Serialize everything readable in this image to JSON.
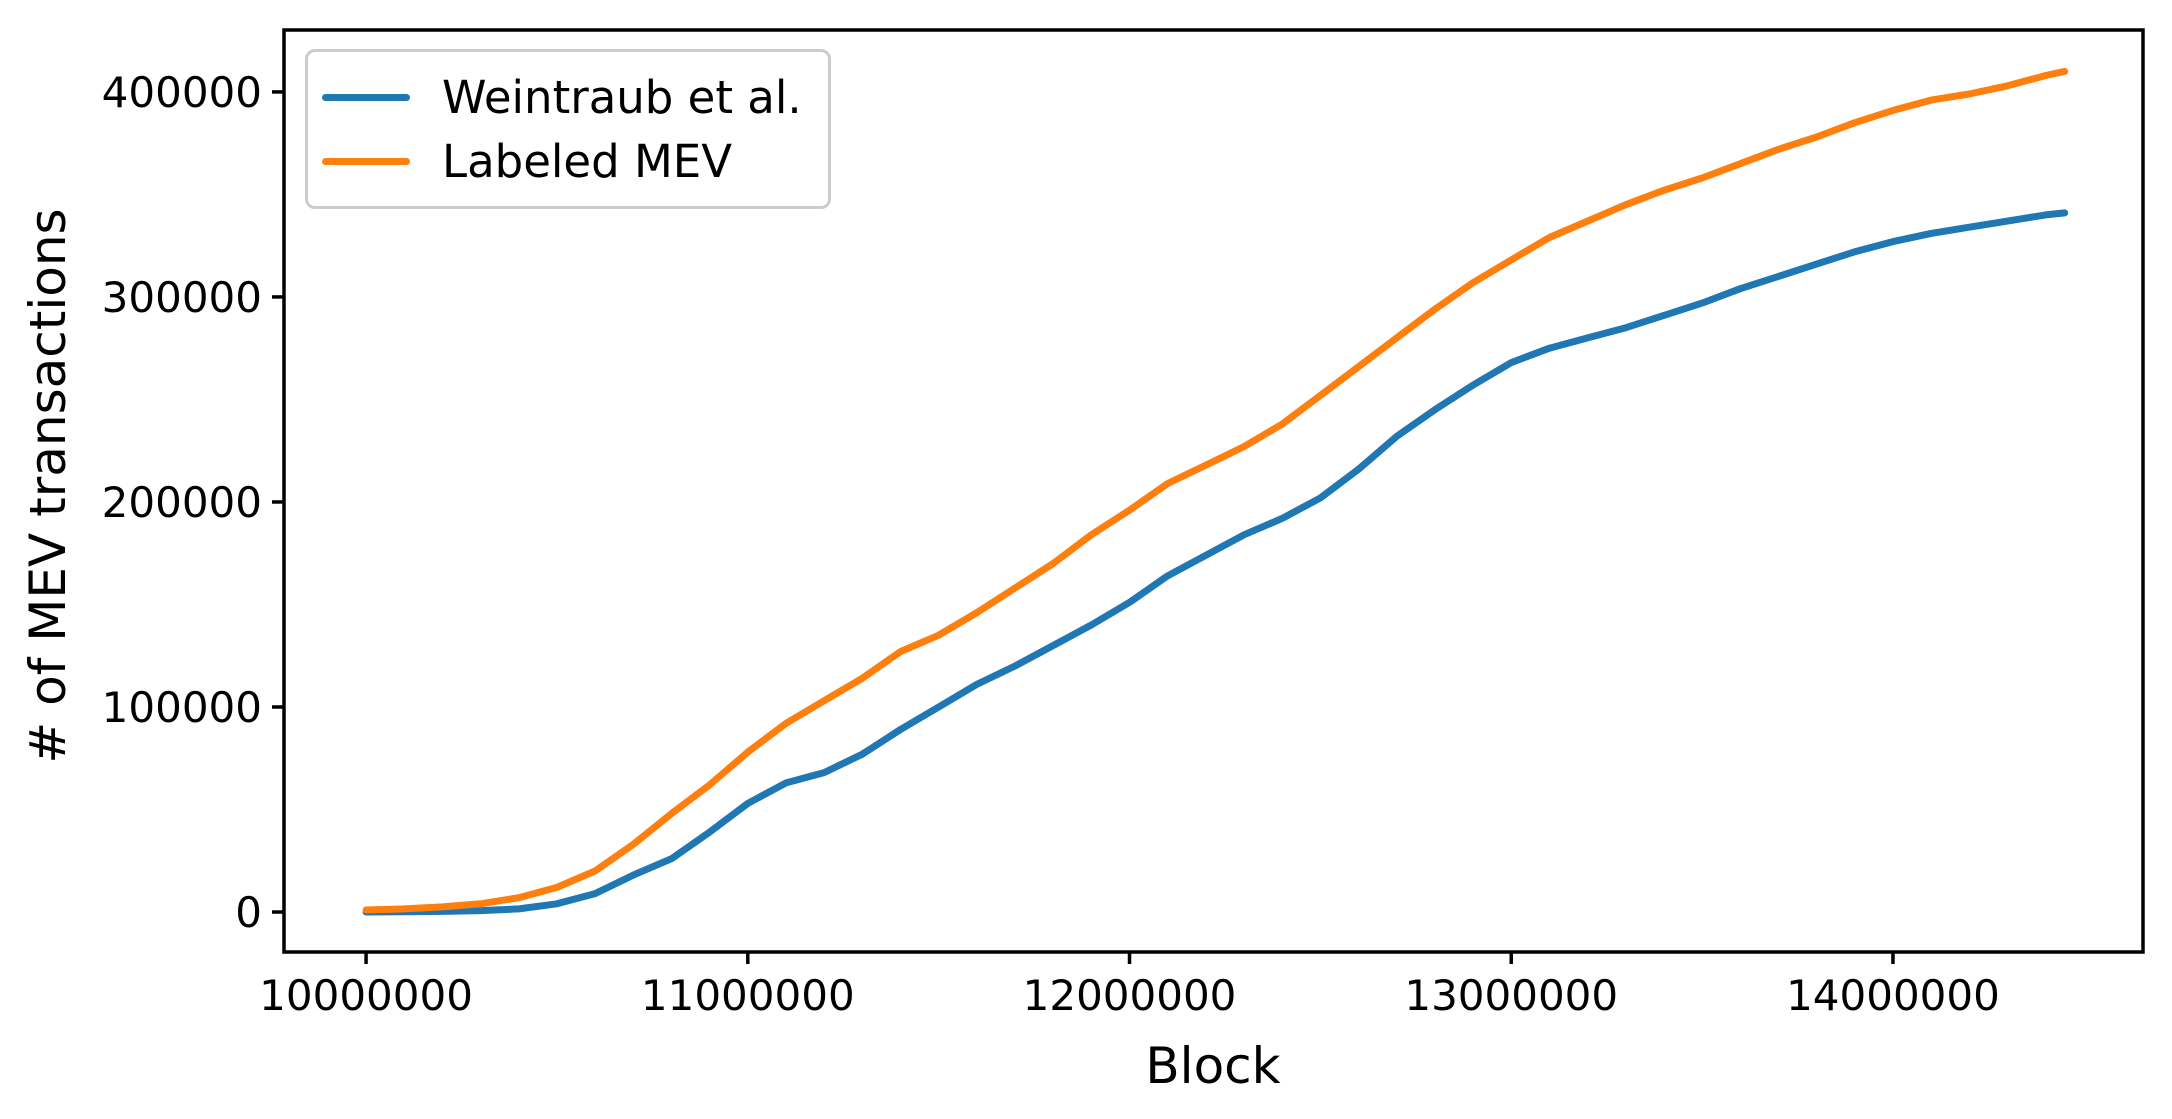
{
  "figure": {
    "background_color": "#ffffff",
    "axis_color": "#000000",
    "legend_border_color": "#cccccc"
  },
  "chart_data": {
    "type": "line",
    "title": "",
    "xlabel": "Block",
    "ylabel": "# of MEV transactions",
    "grid": false,
    "legend_position": "upper left",
    "xlim": [
      9785000,
      14655000
    ],
    "ylim": [
      -19500,
      430200
    ],
    "xticks": {
      "values": [
        10000000,
        11000000,
        12000000,
        13000000,
        14000000
      ],
      "labels": [
        "10000000",
        "11000000",
        "12000000",
        "13000000",
        "14000000"
      ]
    },
    "yticks": {
      "values": [
        0,
        100000,
        200000,
        300000,
        400000
      ],
      "labels": [
        "0",
        "100000",
        "200000",
        "300000",
        "400000"
      ]
    },
    "x": [
      10000000,
      10100000,
      10200000,
      10300000,
      10400000,
      10500000,
      10600000,
      10700000,
      10800000,
      10900000,
      11000000,
      11100000,
      11200000,
      11300000,
      11400000,
      11500000,
      11600000,
      11700000,
      11800000,
      11900000,
      12000000,
      12100000,
      12200000,
      12300000,
      12400000,
      12500000,
      12600000,
      12700000,
      12800000,
      12900000,
      13000000,
      13100000,
      13200000,
      13300000,
      13400000,
      13500000,
      13600000,
      13700000,
      13800000,
      13900000,
      14000000,
      14100000,
      14200000,
      14300000,
      14400000,
      14450000
    ],
    "series": [
      {
        "name": "Weintraub et al.",
        "color": "#1f77b4",
        "values": [
          0,
          100,
          300,
          700,
          1500,
          4000,
          9000,
          18000,
          26000,
          39000,
          53000,
          63000,
          68000,
          77000,
          89000,
          100000,
          111000,
          120000,
          130000,
          140000,
          151000,
          164000,
          174000,
          184000,
          192000,
          202000,
          216000,
          232000,
          245000,
          257000,
          268000,
          275000,
          280000,
          285000,
          291000,
          297000,
          304000,
          310000,
          316000,
          322000,
          327000,
          331000,
          334000,
          337000,
          340000,
          341000
        ]
      },
      {
        "name": "Labeled MEV",
        "color": "#ff7f0e",
        "values": [
          1000,
          1500,
          2500,
          4000,
          7000,
          12000,
          20000,
          33000,
          48000,
          62000,
          78000,
          92000,
          103000,
          114000,
          127000,
          135000,
          146000,
          158000,
          170000,
          184000,
          196000,
          209000,
          218000,
          227000,
          238000,
          252000,
          266000,
          280000,
          294000,
          307000,
          318000,
          329000,
          337000,
          345000,
          352000,
          358000,
          365000,
          372000,
          378000,
          385000,
          391000,
          396000,
          399000,
          403000,
          408000,
          410000
        ]
      }
    ]
  }
}
